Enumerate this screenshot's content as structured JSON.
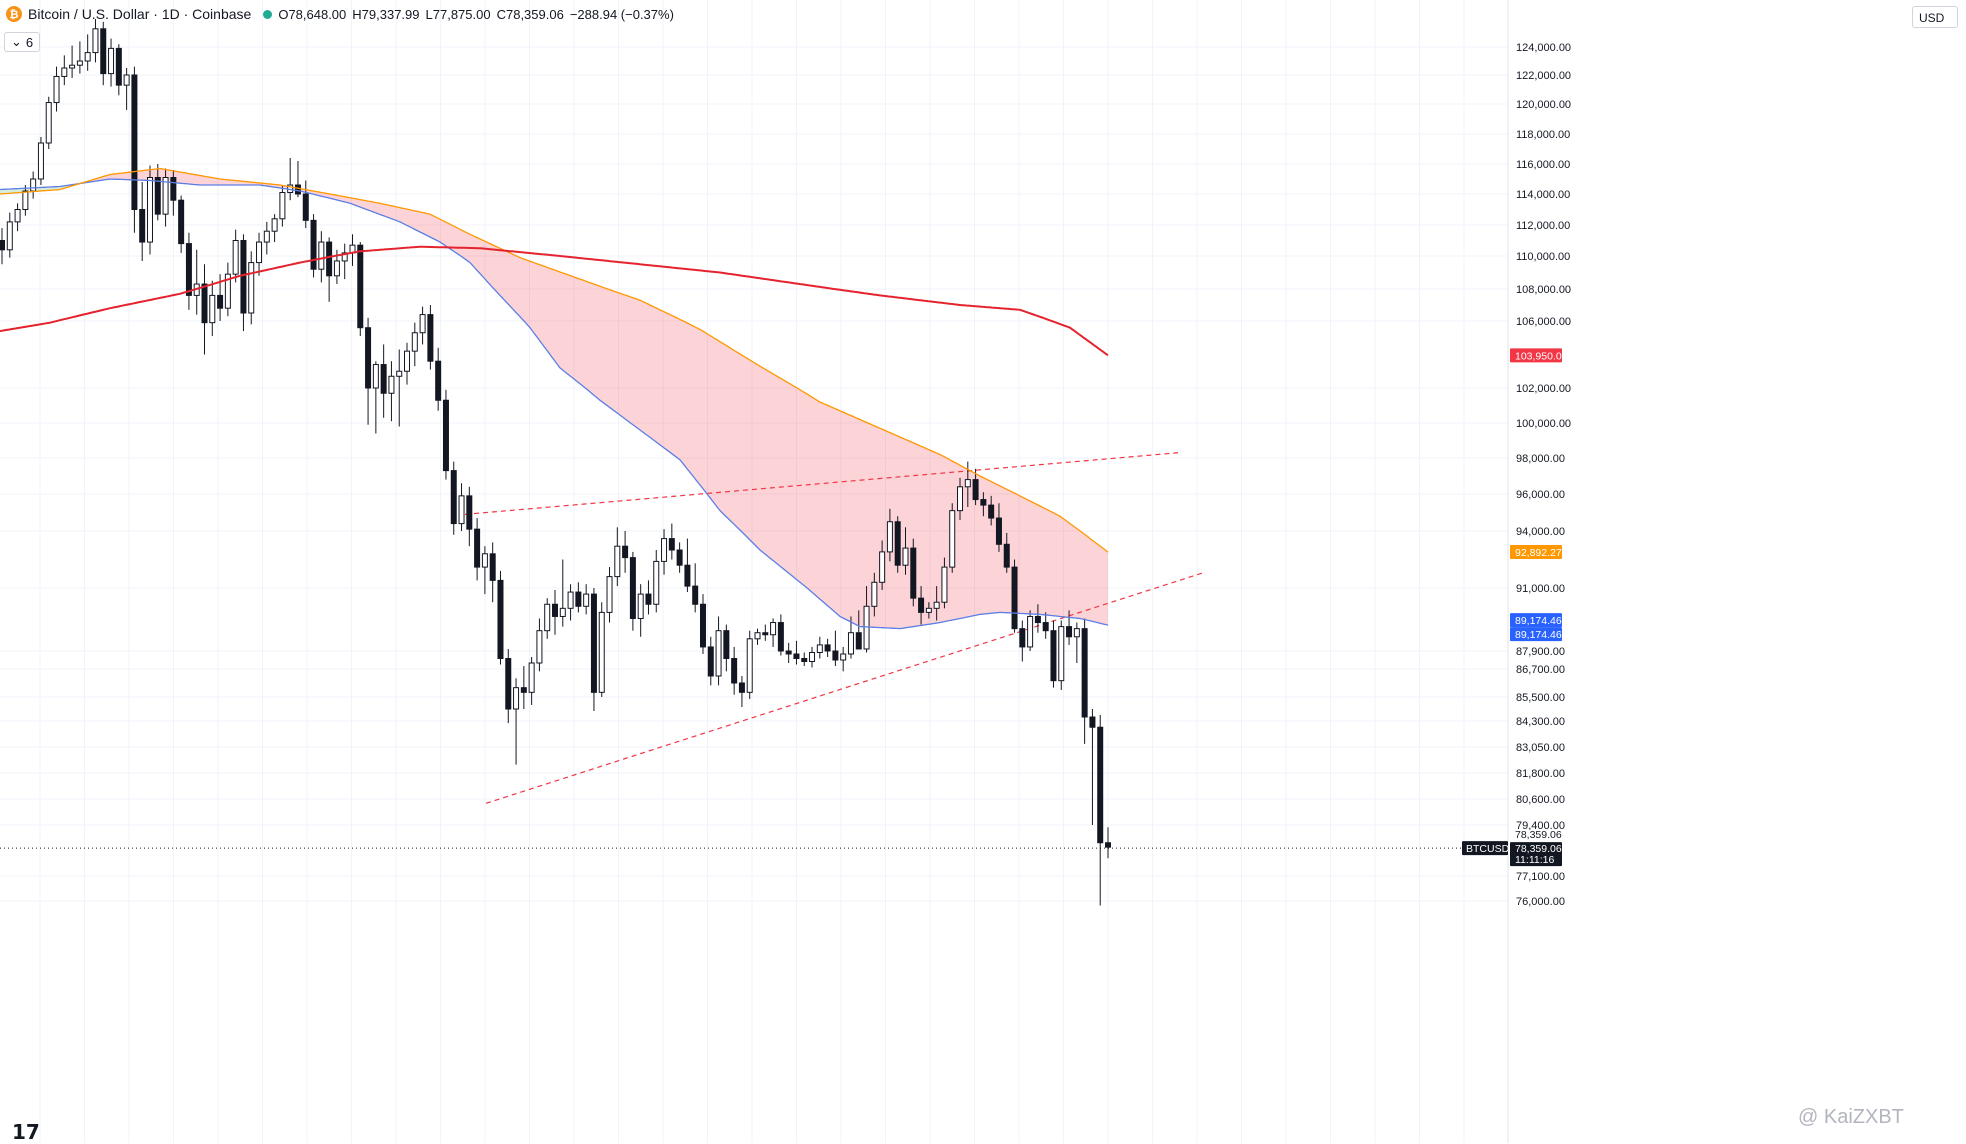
{
  "header": {
    "symbol_title": "Bitcoin / U.S. Dollar · 1D · Coinbase",
    "logo_icon": "bitcoin-icon",
    "ohlc": {
      "o_label": "O",
      "o": "78,648.00",
      "h_label": "H",
      "h": "79,337.99",
      "l_label": "L",
      "l": "77,875.00",
      "c_label": "C",
      "c": "78,359.06",
      "change": "−288.94 (−0.37%)"
    },
    "indicator_toggle": {
      "icon": "chevron-down-icon",
      "count": "6"
    }
  },
  "currency_button": "USD",
  "watermark": "@ KaiZXBT",
  "tv_logo": "17",
  "chart_data": {
    "type": "candlestick",
    "title": "Bitcoin / U.S. Dollar · 1D · Coinbase",
    "price_axis_ticks": [
      "124,000.00",
      "122,000.00",
      "120,000.00",
      "118,000.00",
      "116,000.00",
      "114,000.00",
      "112,000.00",
      "110,000.00",
      "108,000.00",
      "106,000.00",
      "102,000.00",
      "100,000.00",
      "98,000.00",
      "96,000.00",
      "94,000.00",
      "91,000.00",
      "87,900.00",
      "86,700.00",
      "85,500.00",
      "84,300.00",
      "83,050.00",
      "81,800.00",
      "80,600.00",
      "79,400.00",
      "77,100.00",
      "76,000.00"
    ],
    "price_labels": [
      {
        "text": "103,950.04",
        "color": "#f23645",
        "value": 103950.04
      },
      {
        "text": "92,892.27",
        "color": "#ff9800",
        "value": 92892.27
      },
      {
        "text": "89,174.46",
        "color": "#2962ff",
        "value": 89174.46
      },
      {
        "text": "89,174.46",
        "color": "#2962ff",
        "value": 89174.46
      },
      {
        "text": "78,359.06",
        "color": "#131722",
        "value": 78359.06
      },
      {
        "text": "BTCUSD",
        "color": "#131722"
      },
      {
        "text": "11:11:16",
        "color": "#131722"
      }
    ],
    "last_price": 78359.06,
    "candles": [
      [
        111000,
        111800,
        109500,
        110400
      ],
      [
        110400,
        112800,
        109900,
        112200
      ],
      [
        112200,
        113400,
        111600,
        113000
      ],
      [
        113000,
        114600,
        112600,
        114200
      ],
      [
        114200,
        115500,
        113700,
        115000
      ],
      [
        115000,
        117800,
        114600,
        117400
      ],
      [
        117400,
        120500,
        117000,
        120100
      ],
      [
        120100,
        122600,
        119500,
        121900
      ],
      [
        121900,
        123400,
        121300,
        122500
      ],
      [
        122500,
        124100,
        121800,
        122700
      ],
      [
        122700,
        124400,
        122100,
        123000
      ],
      [
        123000,
        124900,
        122300,
        123600
      ],
      [
        123600,
        126000,
        122900,
        125300
      ],
      [
        125300,
        125800,
        121300,
        122100
      ],
      [
        122100,
        124600,
        121200,
        123900
      ],
      [
        123900,
        124200,
        120600,
        121300
      ],
      [
        121300,
        122500,
        119600,
        122000
      ],
      [
        122000,
        122600,
        111500,
        113000
      ],
      [
        113000,
        114800,
        109700,
        110900
      ],
      [
        110900,
        115900,
        110100,
        115100
      ],
      [
        115100,
        116000,
        112300,
        112700
      ],
      [
        112700,
        115700,
        111900,
        115100
      ],
      [
        115100,
        115600,
        112600,
        113600
      ],
      [
        113600,
        113900,
        110200,
        110800
      ],
      [
        110800,
        111500,
        106700,
        107600
      ],
      [
        107600,
        110400,
        106400,
        108300
      ],
      [
        108300,
        109500,
        104000,
        105900
      ],
      [
        105900,
        108500,
        105100,
        107600
      ],
      [
        107600,
        108900,
        106000,
        106800
      ],
      [
        106800,
        109600,
        106300,
        108900
      ],
      [
        108900,
        111700,
        108400,
        111000
      ],
      [
        111000,
        111400,
        105400,
        106500
      ],
      [
        106500,
        110300,
        105800,
        109600
      ],
      [
        109600,
        111500,
        108800,
        110900
      ],
      [
        110900,
        112200,
        110100,
        111600
      ],
      [
        111600,
        112700,
        110900,
        112400
      ],
      [
        112400,
        114600,
        111900,
        114100
      ],
      [
        114100,
        116400,
        113600,
        114600
      ],
      [
        114600,
        116200,
        113800,
        114000
      ],
      [
        114000,
        114900,
        111800,
        112300
      ],
      [
        112300,
        112700,
        108700,
        109200
      ],
      [
        109200,
        111600,
        108400,
        110900
      ],
      [
        110900,
        111200,
        107200,
        108800
      ],
      [
        108800,
        110400,
        108300,
        109700
      ],
      [
        109700,
        110800,
        108600,
        110200
      ],
      [
        110200,
        111400,
        109400,
        110700
      ],
      [
        110700,
        110900,
        105100,
        105600
      ],
      [
        105600,
        106200,
        99900,
        102000
      ],
      [
        102000,
        103600,
        99400,
        103400
      ],
      [
        103400,
        104600,
        100300,
        101700
      ],
      [
        101700,
        103600,
        100100,
        102700
      ],
      [
        102700,
        104300,
        99800,
        103000
      ],
      [
        103000,
        104700,
        102200,
        104200
      ],
      [
        104200,
        105900,
        103300,
        105300
      ],
      [
        105300,
        106900,
        104600,
        106400
      ],
      [
        106400,
        107000,
        103100,
        103600
      ],
      [
        103600,
        104400,
        100700,
        101300
      ],
      [
        101300,
        101900,
        96800,
        97300
      ],
      [
        97300,
        97800,
        93800,
        94400
      ],
      [
        94400,
        96600,
        94000,
        95900
      ],
      [
        95900,
        96400,
        93200,
        94100
      ],
      [
        94100,
        94700,
        91400,
        92100
      ],
      [
        92100,
        93200,
        90700,
        92800
      ],
      [
        92800,
        93400,
        90300,
        91400
      ],
      [
        91400,
        91900,
        87000,
        87400
      ],
      [
        87400,
        88000,
        84200,
        84900
      ],
      [
        84900,
        86300,
        82200,
        85900
      ],
      [
        85900,
        86900,
        84900,
        85700
      ],
      [
        85700,
        87500,
        85100,
        87100
      ],
      [
        87100,
        89500,
        86600,
        88900
      ],
      [
        88900,
        90500,
        88500,
        90200
      ],
      [
        90200,
        90900,
        88700,
        89600
      ],
      [
        89600,
        92500,
        89100,
        90000
      ],
      [
        90000,
        91200,
        89400,
        90800
      ],
      [
        90800,
        91300,
        89800,
        90100
      ],
      [
        90100,
        91200,
        89700,
        90700
      ],
      [
        90700,
        91000,
        84800,
        85700
      ],
      [
        85700,
        90300,
        85500,
        89800
      ],
      [
        89800,
        92100,
        89300,
        91600
      ],
      [
        91600,
        94200,
        91100,
        93200
      ],
      [
        93200,
        94000,
        91800,
        92600
      ],
      [
        92600,
        92900,
        88900,
        89500
      ],
      [
        89500,
        91200,
        88600,
        90700
      ],
      [
        90700,
        91400,
        89700,
        90200
      ],
      [
        90200,
        93000,
        89800,
        92400
      ],
      [
        92400,
        94100,
        91700,
        93600
      ],
      [
        93600,
        94400,
        92500,
        93000
      ],
      [
        93000,
        93400,
        91800,
        92200
      ],
      [
        92200,
        93600,
        90800,
        91100
      ],
      [
        91100,
        92300,
        89800,
        90200
      ],
      [
        90200,
        90700,
        87700,
        88100
      ],
      [
        88100,
        88600,
        86000,
        86400
      ],
      [
        86400,
        89600,
        86000,
        88900
      ],
      [
        88900,
        89200,
        86600,
        87400
      ],
      [
        87400,
        88100,
        85600,
        86100
      ],
      [
        86100,
        86400,
        85000,
        85700
      ],
      [
        85700,
        88900,
        85400,
        88500
      ],
      [
        88500,
        89000,
        88200,
        88800
      ],
      [
        88800,
        89200,
        88400,
        88700
      ],
      [
        88700,
        89500,
        88100,
        89300
      ],
      [
        89300,
        89700,
        87600,
        87900
      ],
      [
        87900,
        88300,
        87100,
        87700
      ],
      [
        87700,
        88400,
        87000,
        87400
      ],
      [
        87400,
        87800,
        86900,
        87200
      ],
      [
        87200,
        88100,
        86800,
        87800
      ],
      [
        87800,
        88600,
        87400,
        88200
      ],
      [
        88200,
        88500,
        87500,
        87900
      ],
      [
        87900,
        88900,
        86900,
        87300
      ],
      [
        87300,
        88100,
        86600,
        87700
      ],
      [
        87700,
        89600,
        87400,
        88800
      ],
      [
        88800,
        89900,
        88300,
        88000
      ],
      [
        88000,
        91100,
        87800,
        90100
      ],
      [
        90100,
        91800,
        89600,
        91300
      ],
      [
        91300,
        93500,
        90900,
        92900
      ],
      [
        92900,
        95200,
        92400,
        94500
      ],
      [
        94500,
        94800,
        91800,
        92200
      ],
      [
        92200,
        94200,
        91700,
        93100
      ],
      [
        93100,
        93600,
        90100,
        90500
      ],
      [
        90500,
        91100,
        89200,
        89800
      ],
      [
        89800,
        90300,
        89500,
        90000
      ],
      [
        90000,
        91100,
        89400,
        90300
      ],
      [
        90300,
        92600,
        90000,
        92100
      ],
      [
        92100,
        95500,
        91800,
        95100
      ],
      [
        95100,
        96900,
        94600,
        96400
      ],
      [
        96400,
        97800,
        95300,
        96800
      ],
      [
        96800,
        97400,
        95400,
        95700
      ],
      [
        95700,
        96100,
        94800,
        95400
      ],
      [
        95400,
        95900,
        94300,
        94700
      ],
      [
        94700,
        95500,
        92900,
        93300
      ],
      [
        93300,
        93900,
        91800,
        92100
      ],
      [
        92100,
        92500,
        88800,
        89000
      ],
      [
        89000,
        89400,
        87200,
        88100
      ],
      [
        88100,
        89900,
        87900,
        89600
      ],
      [
        89600,
        90200,
        88800,
        89300
      ],
      [
        89300,
        89800,
        88500,
        88900
      ],
      [
        88900,
        89400,
        85900,
        86200
      ],
      [
        86200,
        89400,
        85800,
        89100
      ],
      [
        89100,
        89900,
        88200,
        88600
      ],
      [
        88600,
        89300,
        87100,
        89000
      ],
      [
        89000,
        89500,
        83200,
        84500
      ],
      [
        84500,
        84900,
        79400,
        84000
      ],
      [
        84000,
        84600,
        75800,
        78600
      ],
      [
        78600,
        79300,
        77900,
        78400
      ]
    ],
    "candle_x_span": [
      2,
      1108
    ],
    "ema_blue": {
      "color": "#5b7ee5",
      "points": [
        [
          0,
          114300
        ],
        [
          60,
          114500
        ],
        [
          110,
          115000
        ],
        [
          150,
          114900
        ],
        [
          200,
          114600
        ],
        [
          260,
          114600
        ],
        [
          300,
          114200
        ],
        [
          350,
          113400
        ],
        [
          400,
          112200
        ],
        [
          440,
          110900
        ],
        [
          470,
          109600
        ],
        [
          500,
          107600
        ],
        [
          530,
          105600
        ],
        [
          560,
          103200
        ],
        [
          600,
          101300
        ],
        [
          640,
          99600
        ],
        [
          680,
          97900
        ],
        [
          720,
          95100
        ],
        [
          760,
          93000
        ],
        [
          800,
          91300
        ],
        [
          840,
          89600
        ],
        [
          860,
          89100
        ],
        [
          900,
          89000
        ],
        [
          940,
          89300
        ],
        [
          980,
          89700
        ],
        [
          1000,
          89800
        ],
        [
          1040,
          89700
        ],
        [
          1080,
          89500
        ],
        [
          1108,
          89174
        ]
      ]
    },
    "ema_orange": {
      "color": "#ff9800",
      "points": [
        [
          0,
          114000
        ],
        [
          60,
          114300
        ],
        [
          110,
          115300
        ],
        [
          160,
          115700
        ],
        [
          220,
          115000
        ],
        [
          280,
          114600
        ],
        [
          330,
          114000
        ],
        [
          380,
          113400
        ],
        [
          430,
          112700
        ],
        [
          470,
          111400
        ],
        [
          520,
          109900
        ],
        [
          580,
          108600
        ],
        [
          640,
          107300
        ],
        [
          700,
          105500
        ],
        [
          760,
          103300
        ],
        [
          820,
          101200
        ],
        [
          880,
          99700
        ],
        [
          940,
          98200
        ],
        [
          980,
          97000
        ],
        [
          1020,
          95900
        ],
        [
          1060,
          94800
        ],
        [
          1108,
          92892
        ]
      ]
    },
    "sma_red": {
      "color": "#e5232e",
      "points": [
        [
          0,
          105400
        ],
        [
          50,
          105900
        ],
        [
          110,
          106800
        ],
        [
          180,
          107700
        ],
        [
          240,
          108800
        ],
        [
          300,
          109600
        ],
        [
          360,
          110300
        ],
        [
          420,
          110600
        ],
        [
          480,
          110500
        ],
        [
          560,
          110000
        ],
        [
          640,
          109500
        ],
        [
          720,
          109000
        ],
        [
          800,
          108300
        ],
        [
          880,
          107600
        ],
        [
          960,
          107000
        ],
        [
          1020,
          106700
        ],
        [
          1070,
          105600
        ],
        [
          1108,
          103950
        ]
      ]
    },
    "trendlines": [
      {
        "style": "dashed",
        "color": "#f23645",
        "from": [
          465,
          94900
        ],
        "to": [
          1178,
          98300
        ]
      },
      {
        "style": "dashed",
        "color": "#f23645",
        "from": [
          486,
          80400
        ],
        "to": [
          1203,
          91800
        ]
      }
    ]
  }
}
